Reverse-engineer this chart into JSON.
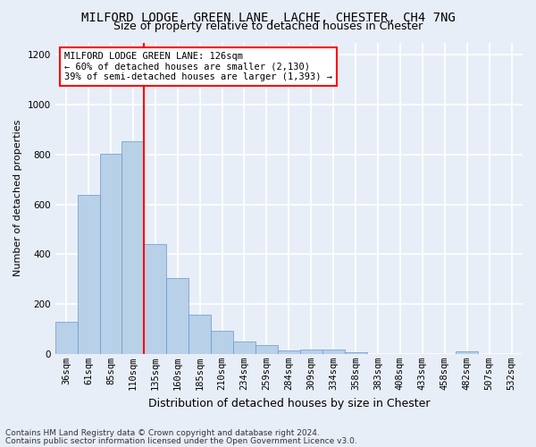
{
  "title": "MILFORD LODGE, GREEN LANE, LACHE, CHESTER, CH4 7NG",
  "subtitle": "Size of property relative to detached houses in Chester",
  "xlabel": "Distribution of detached houses by size in Chester",
  "ylabel": "Number of detached properties",
  "footer_line1": "Contains HM Land Registry data © Crown copyright and database right 2024.",
  "footer_line2": "Contains public sector information licensed under the Open Government Licence v3.0.",
  "categories": [
    "36sqm",
    "61sqm",
    "85sqm",
    "110sqm",
    "135sqm",
    "160sqm",
    "185sqm",
    "210sqm",
    "234sqm",
    "259sqm",
    "284sqm",
    "309sqm",
    "334sqm",
    "358sqm",
    "383sqm",
    "408sqm",
    "433sqm",
    "458sqm",
    "482sqm",
    "507sqm",
    "532sqm"
  ],
  "values": [
    130,
    638,
    805,
    853,
    440,
    305,
    158,
    93,
    50,
    37,
    15,
    18,
    18,
    8,
    0,
    0,
    0,
    0,
    10,
    0,
    0
  ],
  "bar_color": "#b8d0e8",
  "bar_edge_color": "#6699cc",
  "vline_x": 3.5,
  "vline_color": "red",
  "annotation_text": "MILFORD LODGE GREEN LANE: 126sqm\n← 60% of detached houses are smaller (2,130)\n39% of semi-detached houses are larger (1,393) →",
  "annotation_box_facecolor": "white",
  "annotation_box_edgecolor": "red",
  "ylim": [
    0,
    1250
  ],
  "yticks": [
    0,
    200,
    400,
    600,
    800,
    1000,
    1200
  ],
  "bg_color": "#e8eef8",
  "axes_bg": "#e8eef8",
  "grid_color": "white",
  "title_fontsize": 10,
  "subtitle_fontsize": 9,
  "ylabel_fontsize": 8,
  "xlabel_fontsize": 9,
  "tick_fontsize": 7.5,
  "annot_fontsize": 7.5,
  "footer_fontsize": 6.5
}
